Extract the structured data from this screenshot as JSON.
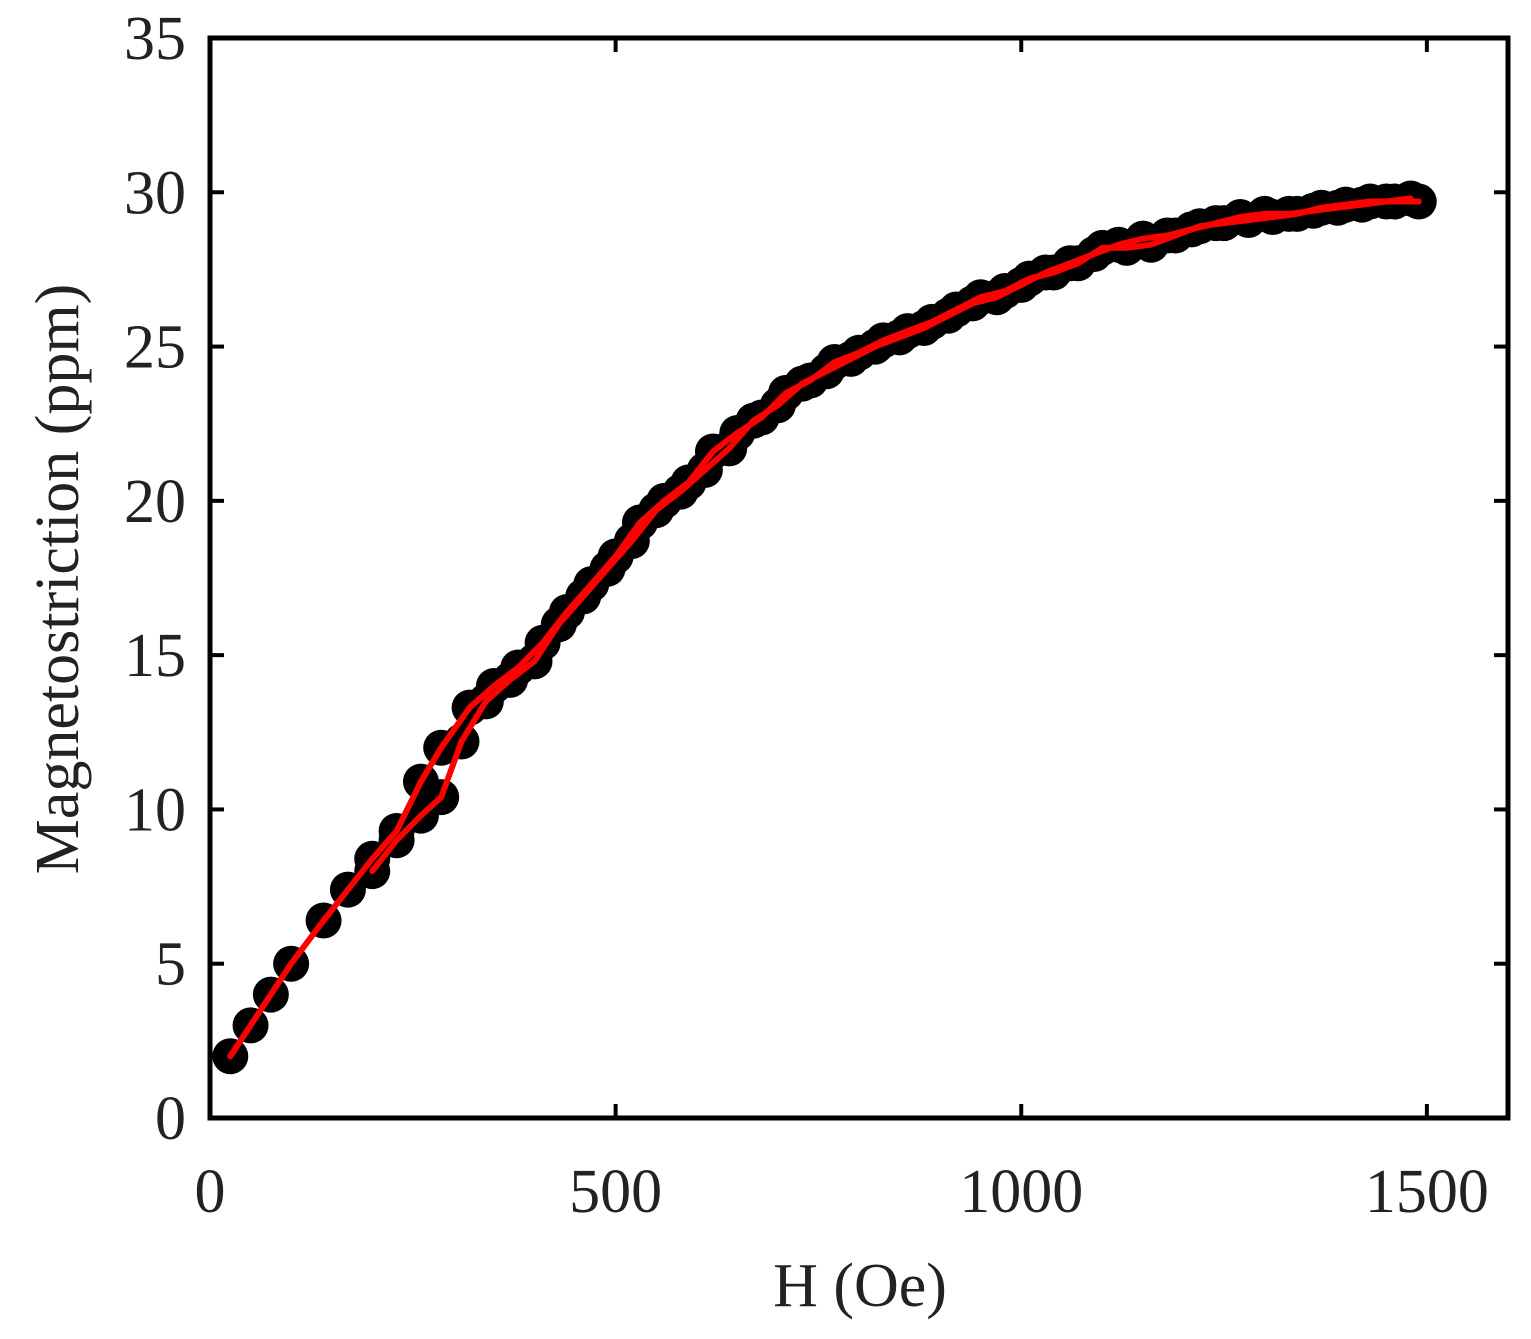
{
  "chart_data": {
    "type": "scatter",
    "title": "",
    "xlabel": "H (Oe)",
    "ylabel": "Magnetostriction (ppm)",
    "xlim": [
      0,
      1600
    ],
    "ylim": [
      0,
      35
    ],
    "xticks": [
      0,
      500,
      1000,
      1500
    ],
    "yticks": [
      0,
      5,
      10,
      15,
      20,
      25,
      30,
      35
    ],
    "grid": false,
    "legend": "none",
    "colors": {
      "marker": "#000000",
      "line": "#ff0000",
      "axes": "#000000"
    },
    "series": [
      {
        "style": "markers",
        "x": [
          25,
          50,
          75,
          100,
          140,
          170,
          200,
          230,
          260,
          285,
          320,
          350,
          380,
          410,
          440,
          470,
          500,
          530,
          560,
          590,
          620,
          650,
          680,
          710,
          740,
          770,
          800,
          830,
          860,
          890,
          920,
          950,
          980,
          1010,
          1040,
          1070,
          1100,
          1130,
          1160,
          1190,
          1220,
          1250,
          1280,
          1310,
          1340,
          1370,
          1400,
          1430,
          1460,
          1490,
          1480,
          1450,
          1420,
          1390,
          1360,
          1330,
          1300,
          1270,
          1240,
          1210,
          1180,
          1150,
          1120,
          1090,
          1060,
          1030,
          1000,
          970,
          940,
          910,
          880,
          850,
          820,
          790,
          760,
          730,
          700,
          670,
          640,
          610,
          580,
          550,
          520,
          490,
          460,
          430,
          400,
          370,
          340,
          310,
          285,
          260,
          230,
          200
        ],
        "y": [
          2.0,
          3.0,
          4.0,
          5.0,
          6.4,
          7.4,
          8.4,
          9.3,
          10.9,
          12.0,
          13.3,
          14.0,
          14.6,
          15.4,
          16.4,
          17.3,
          18.2,
          19.3,
          20.0,
          20.6,
          21.6,
          22.2,
          22.7,
          23.5,
          23.9,
          24.5,
          24.8,
          25.2,
          25.5,
          25.8,
          26.2,
          26.6,
          26.8,
          27.2,
          27.4,
          27.7,
          28.2,
          28.2,
          28.3,
          28.6,
          28.9,
          29.0,
          29.1,
          29.2,
          29.3,
          29.5,
          29.6,
          29.7,
          29.7,
          29.7,
          29.8,
          29.7,
          29.6,
          29.5,
          29.4,
          29.3,
          29.3,
          29.2,
          29.0,
          28.8,
          28.6,
          28.5,
          28.3,
          28.0,
          27.7,
          27.4,
          27.0,
          26.6,
          26.4,
          26.0,
          25.6,
          25.3,
          25.0,
          24.6,
          24.2,
          23.8,
          23.1,
          22.6,
          21.7,
          21.0,
          20.3,
          19.7,
          18.7,
          17.8,
          16.9,
          16.0,
          14.8,
          14.2,
          13.5,
          12.2,
          10.4,
          9.8,
          9.0,
          8.0
        ]
      },
      {
        "style": "line",
        "x": [
          25,
          50,
          75,
          100,
          140,
          170,
          200,
          230,
          260,
          285,
          320,
          350,
          380,
          410,
          440,
          470,
          500,
          530,
          560,
          590,
          620,
          650,
          680,
          710,
          740,
          770,
          800,
          830,
          860,
          890,
          920,
          950,
          980,
          1010,
          1040,
          1070,
          1100,
          1130,
          1160,
          1190,
          1220,
          1250,
          1280,
          1310,
          1340,
          1370,
          1400,
          1430,
          1460,
          1490
        ],
        "y": [
          2.0,
          3.0,
          4.0,
          5.0,
          6.4,
          7.4,
          8.4,
          9.3,
          10.9,
          12.0,
          13.3,
          14.0,
          14.6,
          15.4,
          16.4,
          17.3,
          18.2,
          19.3,
          20.0,
          20.6,
          21.6,
          22.2,
          22.7,
          23.5,
          23.9,
          24.5,
          24.8,
          25.2,
          25.5,
          25.8,
          26.2,
          26.6,
          26.8,
          27.2,
          27.4,
          27.7,
          28.2,
          28.2,
          28.3,
          28.6,
          28.9,
          29.0,
          29.1,
          29.2,
          29.3,
          29.5,
          29.6,
          29.7,
          29.7,
          29.7
        ]
      },
      {
        "style": "line",
        "x": [
          1480,
          1450,
          1420,
          1390,
          1360,
          1330,
          1300,
          1270,
          1240,
          1210,
          1180,
          1150,
          1120,
          1090,
          1060,
          1030,
          1000,
          970,
          940,
          910,
          880,
          850,
          820,
          790,
          760,
          730,
          700,
          670,
          640,
          610,
          580,
          550,
          520,
          490,
          460,
          430,
          400,
          370,
          340,
          310,
          285,
          260,
          230,
          200
        ],
        "y": [
          29.8,
          29.7,
          29.6,
          29.5,
          29.4,
          29.3,
          29.3,
          29.2,
          29.0,
          28.8,
          28.6,
          28.5,
          28.3,
          28.0,
          27.7,
          27.4,
          27.0,
          26.6,
          26.4,
          26.0,
          25.6,
          25.3,
          25.0,
          24.6,
          24.2,
          23.8,
          23.1,
          22.6,
          21.7,
          21.0,
          20.3,
          19.7,
          18.7,
          17.8,
          16.9,
          16.0,
          14.8,
          14.2,
          13.5,
          12.2,
          10.4,
          9.8,
          9.0,
          8.0
        ]
      }
    ]
  }
}
